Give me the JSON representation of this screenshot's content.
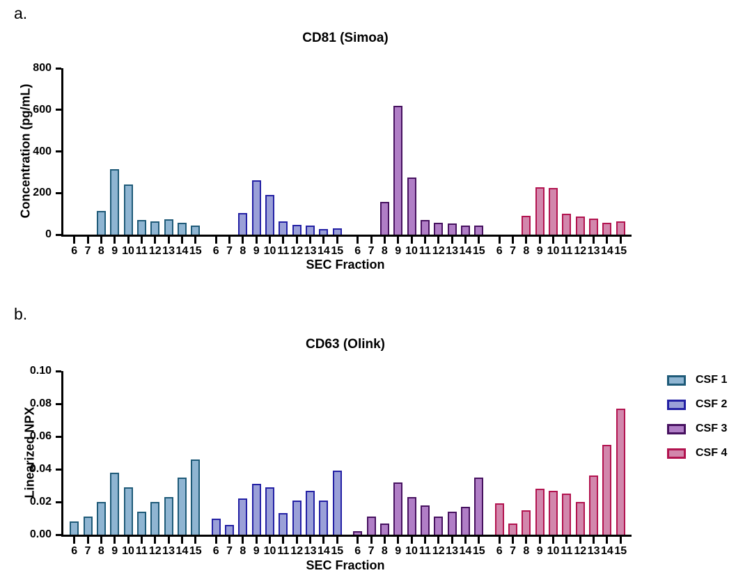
{
  "figure": {
    "background": "#ffffff",
    "panel_a_label": "a.",
    "panel_b_label": "b."
  },
  "legend": {
    "position": "right",
    "items": [
      {
        "label": "CSF 1",
        "fill": "#8FB5D2",
        "border": "#1E5A78"
      },
      {
        "label": "CSF 2",
        "fill": "#9AA0D8",
        "border": "#2320A4"
      },
      {
        "label": "CSF 3",
        "fill": "#B07EC6",
        "border": "#46115F"
      },
      {
        "label": "CSF 4",
        "fill": "#D287AC",
        "border": "#B2134F"
      }
    ]
  },
  "chart_data": [
    {
      "id": "panel_a",
      "type": "bar",
      "panel_label": "a.",
      "title": "CD81 (Simoa)",
      "xlabel": "SEC Fraction",
      "ylabel": "Concentration (pg/mL)",
      "ylim": [
        0,
        800
      ],
      "yticks": [
        0,
        200,
        400,
        600,
        800
      ],
      "ytick_labels": [
        "0",
        "200",
        "400",
        "600",
        "800"
      ],
      "grid": false,
      "legend_position": "none",
      "categories": [
        "6",
        "7",
        "8",
        "9",
        "10",
        "11",
        "12",
        "13",
        "14",
        "15"
      ],
      "series": [
        {
          "name": "CSF 1",
          "values": [
            0,
            0,
            115,
            315,
            240,
            72,
            63,
            75,
            57,
            43
          ]
        },
        {
          "name": "CSF 2",
          "values": [
            0,
            0,
            105,
            260,
            192,
            63,
            48,
            45,
            28,
            30
          ]
        },
        {
          "name": "CSF 3",
          "values": [
            0,
            0,
            158,
            618,
            275,
            72,
            58,
            55,
            45,
            43
          ]
        },
        {
          "name": "CSF 4",
          "values": [
            0,
            0,
            90,
            228,
            225,
            102,
            87,
            78,
            57,
            62
          ]
        }
      ]
    },
    {
      "id": "panel_b",
      "type": "bar",
      "panel_label": "b.",
      "title": "CD63 (Olink)",
      "xlabel": "SEC Fraction",
      "ylabel": "Linearized NPX",
      "ylim": [
        0,
        0.1
      ],
      "yticks": [
        0,
        0.02,
        0.04,
        0.06,
        0.08,
        0.1
      ],
      "ytick_labels": [
        "0.00",
        "0.02",
        "0.04",
        "0.06",
        "0.08",
        "0.10"
      ],
      "grid": false,
      "legend_position": "right",
      "categories": [
        "6",
        "7",
        "8",
        "9",
        "10",
        "11",
        "12",
        "13",
        "14",
        "15"
      ],
      "series": [
        {
          "name": "CSF 1",
          "values": [
            0.008,
            0.011,
            0.02,
            0.038,
            0.029,
            0.014,
            0.02,
            0.023,
            0.035,
            0.046
          ]
        },
        {
          "name": "CSF 2",
          "values": [
            0.01,
            0.006,
            0.022,
            0.031,
            0.029,
            0.013,
            0.021,
            0.027,
            0.021,
            0.039
          ]
        },
        {
          "name": "CSF 3",
          "values": [
            0.002,
            0.011,
            0.007,
            0.032,
            0.023,
            0.018,
            0.011,
            0.014,
            0.017,
            0.035
          ]
        },
        {
          "name": "CSF 4",
          "values": [
            0.019,
            0.007,
            0.015,
            0.028,
            0.027,
            0.025,
            0.02,
            0.036,
            0.055,
            0.077
          ]
        }
      ]
    }
  ]
}
